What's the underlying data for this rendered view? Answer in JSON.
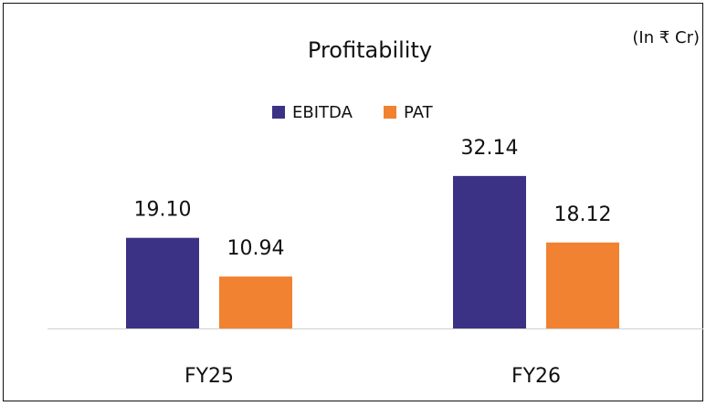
{
  "chart_data": {
    "type": "bar",
    "title": "Profitability",
    "annotation": "(In ₹ Cr)",
    "categories": [
      "FY25",
      "FY26"
    ],
    "series": [
      {
        "name": "EBITDA",
        "color": "#3b3285",
        "values": [
          19.1,
          32.14
        ],
        "value_labels": [
          "19.10",
          "32.14"
        ]
      },
      {
        "name": "PAT",
        "color": "#f08232",
        "values": [
          10.94,
          18.12
        ],
        "value_labels": [
          "10.94",
          "18.12"
        ]
      }
    ],
    "ylim": [
      0,
      40
    ],
    "legend": "top"
  }
}
